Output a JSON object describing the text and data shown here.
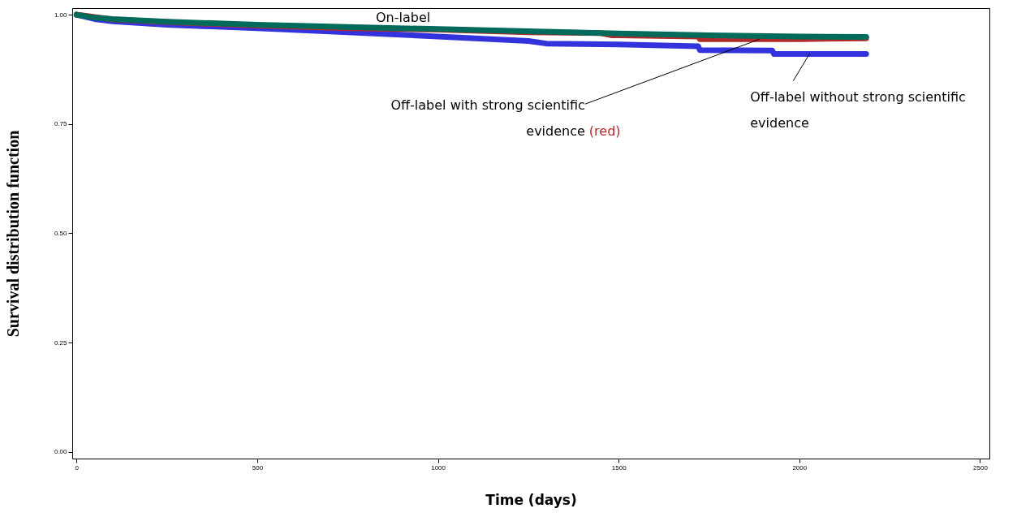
{
  "chart_data": {
    "type": "line",
    "xlabel": "Time (days)",
    "ylabel": "Survival distribution function",
    "xlim": [
      -12,
      2526
    ],
    "ylim": [
      -0.015,
      1.015
    ],
    "xticks": [
      0,
      500,
      1000,
      1500,
      2000,
      2500
    ],
    "yticks": [
      {
        "value": 0,
        "label": "0.00"
      },
      {
        "value": 0.25,
        "label": "0.25"
      },
      {
        "value": 0.5,
        "label": "0.50"
      },
      {
        "value": 0.75,
        "label": "0.75"
      },
      {
        "value": 1,
        "label": "1.00"
      }
    ],
    "series": [
      {
        "color": "#3333dd",
        "x": [
          0,
          50,
          100,
          250,
          500,
          750,
          1000,
          1250,
          1300,
          1500,
          1720,
          1725,
          1925,
          1930,
          2185
        ],
        "values": [
          1,
          0.99,
          0.985,
          0.977,
          0.969,
          0.96,
          0.95,
          0.94,
          0.934,
          0.932,
          0.928,
          0.919,
          0.918,
          0.91,
          0.91
        ]
      },
      {
        "color": "#b22a2a",
        "x": [
          0,
          100,
          250,
          500,
          750,
          1000,
          1250,
          1450,
          1480,
          1720,
          1725,
          2000,
          2185
        ],
        "values": [
          1,
          0.989,
          0.983,
          0.975,
          0.969,
          0.966,
          0.96,
          0.958,
          0.953,
          0.95,
          0.944,
          0.944,
          0.946
        ]
      },
      {
        "color": "#006b5b",
        "x": [
          0,
          50,
          100,
          250,
          500,
          750,
          1000,
          1250,
          1500,
          1750,
          2000,
          2185
        ],
        "values": [
          1,
          0.993,
          0.99,
          0.984,
          0.977,
          0.972,
          0.967,
          0.962,
          0.957,
          0.953,
          0.95,
          0.949
        ]
      }
    ],
    "annotations": [
      {
        "text": "On-label",
        "x": 1000,
        "y": 0.967
      },
      {
        "text": "Off-label with strong scientific evidence",
        "x": 1890,
        "y": 0.944
      },
      "(red)",
      {
        "text": "Off-label without strong scientific evidence",
        "x": 2028,
        "y": 0.91
      }
    ]
  }
}
